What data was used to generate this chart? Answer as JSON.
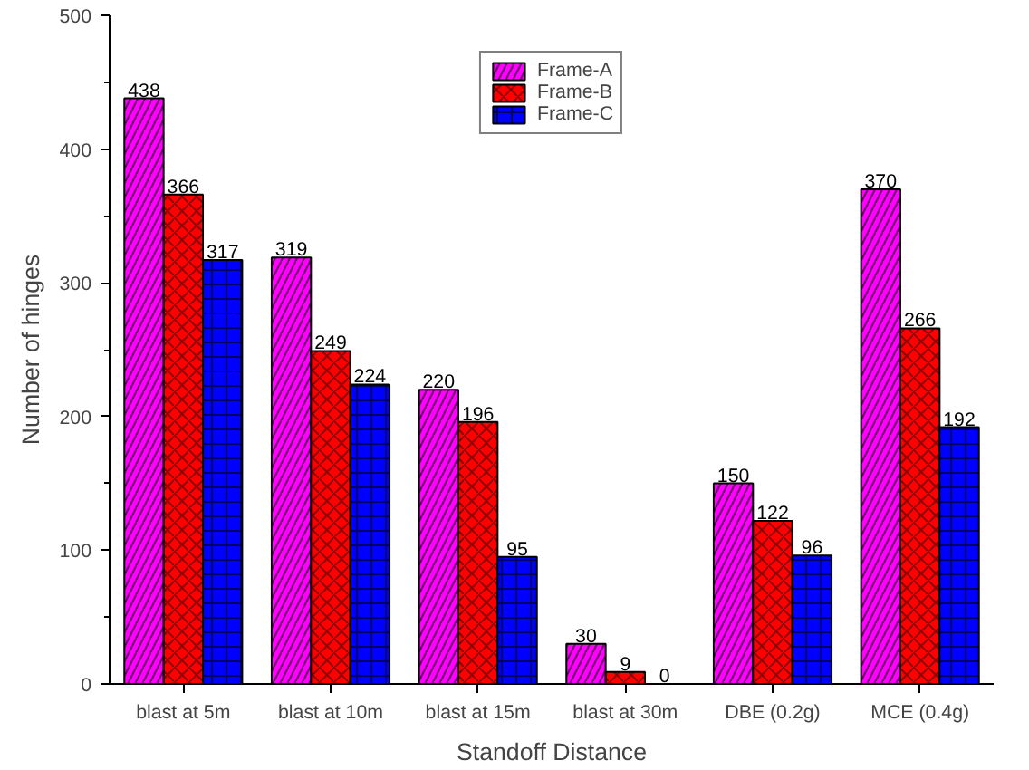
{
  "chart_data": {
    "type": "bar",
    "xlabel": "Standoff Distance",
    "ylabel": "Number of hinges",
    "categories": [
      "blast at 5m",
      "blast at 10m",
      "blast at 15m",
      "blast at 30m",
      "DBE (0.2g)",
      "MCE (0.4g)"
    ],
    "series": [
      {
        "name": "Frame-A",
        "color": "#ff00ff",
        "values": [
          438,
          319,
          220,
          30,
          150,
          370
        ]
      },
      {
        "name": "Frame-B",
        "color": "#ff0000",
        "values": [
          366,
          249,
          196,
          9,
          122,
          266
        ]
      },
      {
        "name": "Frame-C",
        "color": "#0000ff",
        "values": [
          317,
          224,
          95,
          0,
          96,
          192
        ]
      }
    ],
    "ylim": [
      0,
      500
    ],
    "yticks": [
      0,
      100,
      200,
      300,
      400,
      500
    ],
    "grid": false,
    "legend": "top",
    "data_labels": true
  }
}
